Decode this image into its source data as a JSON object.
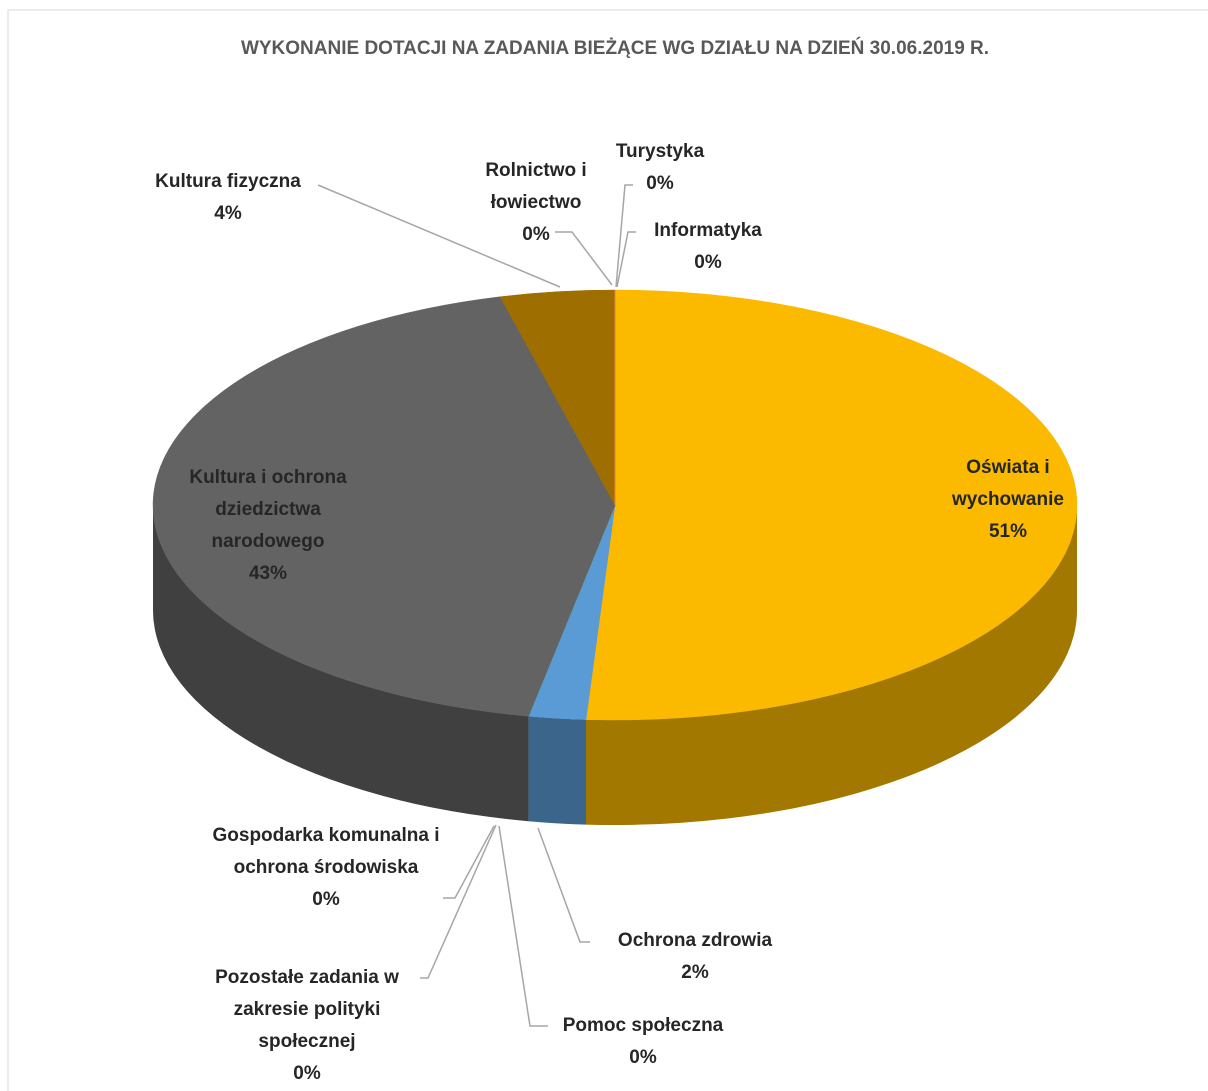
{
  "chart_data": {
    "type": "pie",
    "title": "WYKONANIE DOTACJI NA ZADANIA BIEŻĄCE WG DZIAŁU NA DZIEŃ 30.06.2019 R.",
    "categories": [
      "Oświata i wychowanie",
      "Ochrona zdrowia",
      "Pomoc społeczna",
      "Pozostałe zadania w zakresie polityki społecznej",
      "Gospodarka komunalna i ochrona środowiska",
      "Kultura i ochrona dziedzictwa narodowego",
      "Kultura fizyczna",
      "Rolnictwo i łowiectwo",
      "Turystyka",
      "Informatyka"
    ],
    "values": [
      51,
      2,
      0,
      0,
      0,
      43,
      4,
      0,
      0,
      0
    ],
    "value_labels": [
      "51%",
      "2%",
      "0%",
      "0%",
      "0%",
      "43%",
      "4%",
      "0%",
      "0%",
      "0%"
    ],
    "colors": [
      "#fbb900",
      "#5b9bd5",
      "#4c9a3a",
      "#264478",
      "#70ad47",
      "#636363",
      "#9e6e00",
      "#a5a5a5",
      "#f28b82",
      "#ed7d31"
    ]
  }
}
